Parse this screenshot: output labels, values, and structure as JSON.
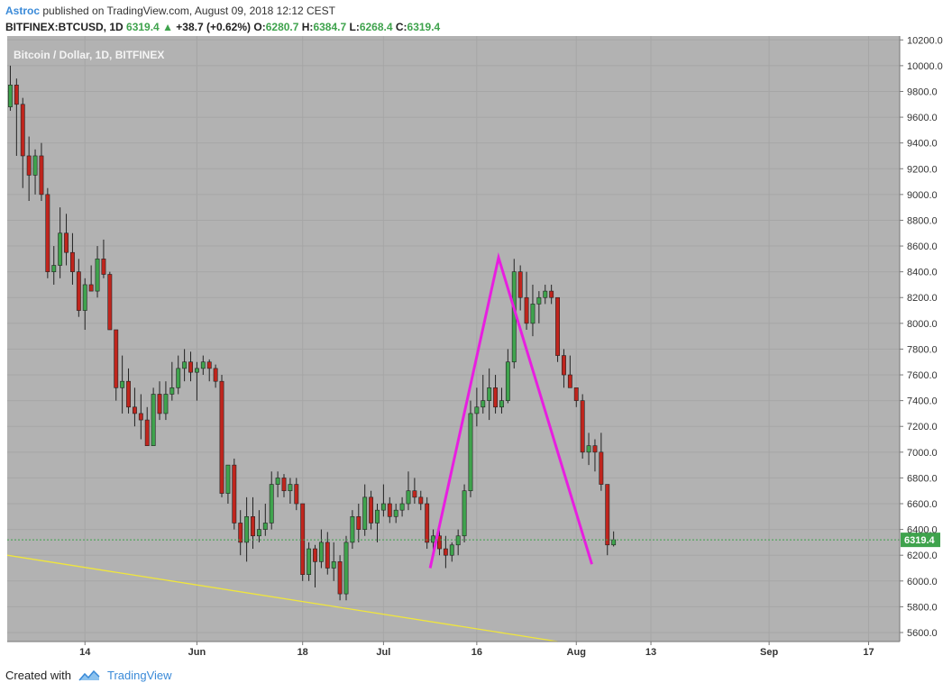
{
  "header": {
    "author": "Astroc",
    "published_text": " published on TradingView.com, August 09, 2018 12:12 CEST"
  },
  "symbol_line": {
    "symbol": "BITFINEX:BTCUSD, 1D",
    "last": "6319.4",
    "change": "+38.7 (+0.62%)",
    "o_label": "O:",
    "o": "6280.7",
    "h_label": "H:",
    "h": "6384.7",
    "l_label": "L:",
    "l": "6268.4",
    "c_label": "C:",
    "c": "6319.4"
  },
  "footer": {
    "created_with": "Created with",
    "brand": "TradingView"
  },
  "colors": {
    "up": "#3fa34d",
    "down": "#c0251d",
    "plot_bg": "#b2b2b2",
    "pattern": "#e81ee0",
    "trendline": "#f0e63c",
    "price_line": "#3fa34d"
  },
  "chart_data": {
    "type": "candlestick",
    "title": "Bitcoin / Dollar, 1D, BITFINEX",
    "y_ticks": [
      5600,
      5800,
      6000,
      6200,
      6400,
      6600,
      6800,
      7000,
      7200,
      7400,
      7600,
      7800,
      8000,
      8200,
      8400,
      8600,
      8800,
      9000,
      9200,
      9400,
      9600,
      9800,
      10000,
      10200
    ],
    "ylim": [
      5530,
      10230
    ],
    "x_ticks": [
      {
        "label": "14",
        "day": 13
      },
      {
        "label": "Jun",
        "day": 31
      },
      {
        "label": "18",
        "day": 48
      },
      {
        "label": "Jul",
        "day": 61
      },
      {
        "label": "16",
        "day": 76
      },
      {
        "label": "Aug",
        "day": 92
      },
      {
        "label": "13",
        "day": 104
      },
      {
        "label": "Sep",
        "day": 123
      },
      {
        "label": "17",
        "day": 139
      }
    ],
    "xlim": [
      0.5,
      144
    ],
    "last_price": 6319.4,
    "last_price_label": "6319.4",
    "candles": [
      [
        1,
        9680,
        10000,
        9650,
        9850
      ],
      [
        2,
        9850,
        9900,
        9300,
        9700
      ],
      [
        3,
        9700,
        9750,
        9050,
        9300
      ],
      [
        4,
        9300,
        9450,
        8950,
        9150
      ],
      [
        5,
        9150,
        9350,
        9000,
        9300
      ],
      [
        6,
        9300,
        9400,
        8950,
        9000
      ],
      [
        7,
        9000,
        9050,
        8350,
        8400
      ],
      [
        8,
        8400,
        8600,
        8300,
        8450
      ],
      [
        9,
        8450,
        8900,
        8350,
        8700
      ],
      [
        10,
        8700,
        8850,
        8450,
        8550
      ],
      [
        11,
        8550,
        8700,
        8300,
        8400
      ],
      [
        12,
        8400,
        8500,
        8050,
        8100
      ],
      [
        13,
        8100,
        8350,
        7950,
        8300
      ],
      [
        14,
        8300,
        8450,
        8250,
        8250
      ],
      [
        15,
        8250,
        8600,
        8200,
        8500
      ],
      [
        16,
        8500,
        8650,
        8350,
        8380
      ],
      [
        17,
        8380,
        8400,
        7950,
        7950
      ],
      [
        18,
        7950,
        7950,
        7400,
        7500
      ],
      [
        19,
        7500,
        7750,
        7300,
        7550
      ],
      [
        20,
        7550,
        7650,
        7300,
        7350
      ],
      [
        21,
        7350,
        7500,
        7200,
        7300
      ],
      [
        22,
        7300,
        7450,
        7100,
        7250
      ],
      [
        23,
        7250,
        7350,
        7050,
        7050
      ],
      [
        24,
        7050,
        7500,
        7050,
        7450
      ],
      [
        25,
        7450,
        7550,
        7250,
        7300
      ],
      [
        26,
        7300,
        7550,
        7250,
        7450
      ],
      [
        27,
        7450,
        7700,
        7400,
        7500
      ],
      [
        28,
        7500,
        7750,
        7450,
        7650
      ],
      [
        29,
        7650,
        7800,
        7550,
        7700
      ],
      [
        30,
        7700,
        7780,
        7550,
        7620
      ],
      [
        31,
        7620,
        7700,
        7400,
        7650
      ],
      [
        32,
        7650,
        7750,
        7600,
        7700
      ],
      [
        33,
        7700,
        7720,
        7550,
        7650
      ],
      [
        34,
        7650,
        7680,
        7500,
        7550
      ],
      [
        35,
        7550,
        7600,
        6650,
        6680
      ],
      [
        36,
        6680,
        6900,
        6600,
        6900
      ],
      [
        37,
        6900,
        6950,
        6400,
        6450
      ],
      [
        38,
        6450,
        6550,
        6200,
        6300
      ],
      [
        39,
        6300,
        6650,
        6150,
        6500
      ],
      [
        40,
        6500,
        6650,
        6250,
        6350
      ],
      [
        41,
        6350,
        6550,
        6300,
        6400
      ],
      [
        42,
        6400,
        6600,
        6350,
        6450
      ],
      [
        43,
        6450,
        6850,
        6400,
        6750
      ],
      [
        44,
        6750,
        6850,
        6650,
        6800
      ],
      [
        45,
        6800,
        6830,
        6650,
        6700
      ],
      [
        46,
        6700,
        6800,
        6600,
        6750
      ],
      [
        47,
        6750,
        6800,
        6550,
        6600
      ],
      [
        48,
        6600,
        6600,
        6000,
        6050
      ],
      [
        49,
        6050,
        6300,
        6000,
        6250
      ],
      [
        50,
        6250,
        6280,
        5950,
        6150
      ],
      [
        51,
        6150,
        6400,
        6100,
        6300
      ],
      [
        52,
        6300,
        6380,
        6050,
        6100
      ],
      [
        53,
        6100,
        6300,
        6000,
        6150
      ],
      [
        54,
        6150,
        6200,
        5850,
        5900
      ],
      [
        55,
        5900,
        6350,
        5850,
        6300
      ],
      [
        56,
        6300,
        6550,
        6250,
        6500
      ],
      [
        57,
        6500,
        6600,
        6300,
        6400
      ],
      [
        58,
        6400,
        6750,
        6350,
        6650
      ],
      [
        59,
        6650,
        6700,
        6400,
        6450
      ],
      [
        60,
        6450,
        6600,
        6300,
        6550
      ],
      [
        61,
        6550,
        6750,
        6500,
        6600
      ],
      [
        62,
        6600,
        6650,
        6450,
        6500
      ],
      [
        63,
        6500,
        6600,
        6450,
        6550
      ],
      [
        64,
        6550,
        6650,
        6500,
        6600
      ],
      [
        65,
        6600,
        6850,
        6550,
        6700
      ],
      [
        66,
        6700,
        6800,
        6600,
        6650
      ],
      [
        67,
        6650,
        6700,
        6550,
        6600
      ],
      [
        68,
        6600,
        6650,
        6250,
        6300
      ],
      [
        69,
        6300,
        6400,
        6200,
        6350
      ],
      [
        70,
        6350,
        6450,
        6200,
        6250
      ],
      [
        71,
        6250,
        6350,
        6100,
        6200
      ],
      [
        72,
        6200,
        6300,
        6150,
        6280
      ],
      [
        73,
        6280,
        6400,
        6200,
        6350
      ],
      [
        74,
        6350,
        6750,
        6300,
        6700
      ],
      [
        75,
        6700,
        7400,
        6650,
        7300
      ],
      [
        76,
        7300,
        7500,
        7200,
        7350
      ],
      [
        77,
        7350,
        7600,
        7300,
        7400
      ],
      [
        78,
        7400,
        7650,
        7250,
        7500
      ],
      [
        79,
        7500,
        7600,
        7300,
        7350
      ],
      [
        80,
        7350,
        7500,
        7300,
        7400
      ],
      [
        81,
        7400,
        7800,
        7380,
        7700
      ],
      [
        82,
        7700,
        8500,
        7650,
        8400
      ],
      [
        83,
        8400,
        8450,
        8100,
        8200
      ],
      [
        84,
        8200,
        8400,
        7950,
        8000
      ],
      [
        85,
        8000,
        8300,
        7900,
        8150
      ],
      [
        86,
        8150,
        8250,
        8000,
        8200
      ],
      [
        87,
        8200,
        8300,
        8150,
        8250
      ],
      [
        88,
        8250,
        8300,
        8150,
        8200
      ],
      [
        89,
        8200,
        8200,
        7700,
        7750
      ],
      [
        90,
        7750,
        7800,
        7500,
        7600
      ],
      [
        91,
        7600,
        7750,
        7500,
        7500
      ],
      [
        92,
        7500,
        7500,
        7350,
        7400
      ],
      [
        93,
        7400,
        7450,
        6950,
        7000
      ],
      [
        94,
        7000,
        7150,
        6900,
        7050
      ],
      [
        95,
        7050,
        7100,
        6850,
        7000
      ],
      [
        96,
        7000,
        7150,
        6700,
        6750
      ],
      [
        97,
        6750,
        6750,
        6200,
        6280
      ],
      [
        98,
        6280,
        6385,
        6268,
        6320
      ]
    ],
    "pattern_points": [
      [
        68.5,
        6100
      ],
      [
        79.5,
        8510
      ],
      [
        94.5,
        6130
      ]
    ],
    "trendline": [
      [
        0.5,
        6200
      ],
      [
        89,
        5530
      ]
    ]
  }
}
